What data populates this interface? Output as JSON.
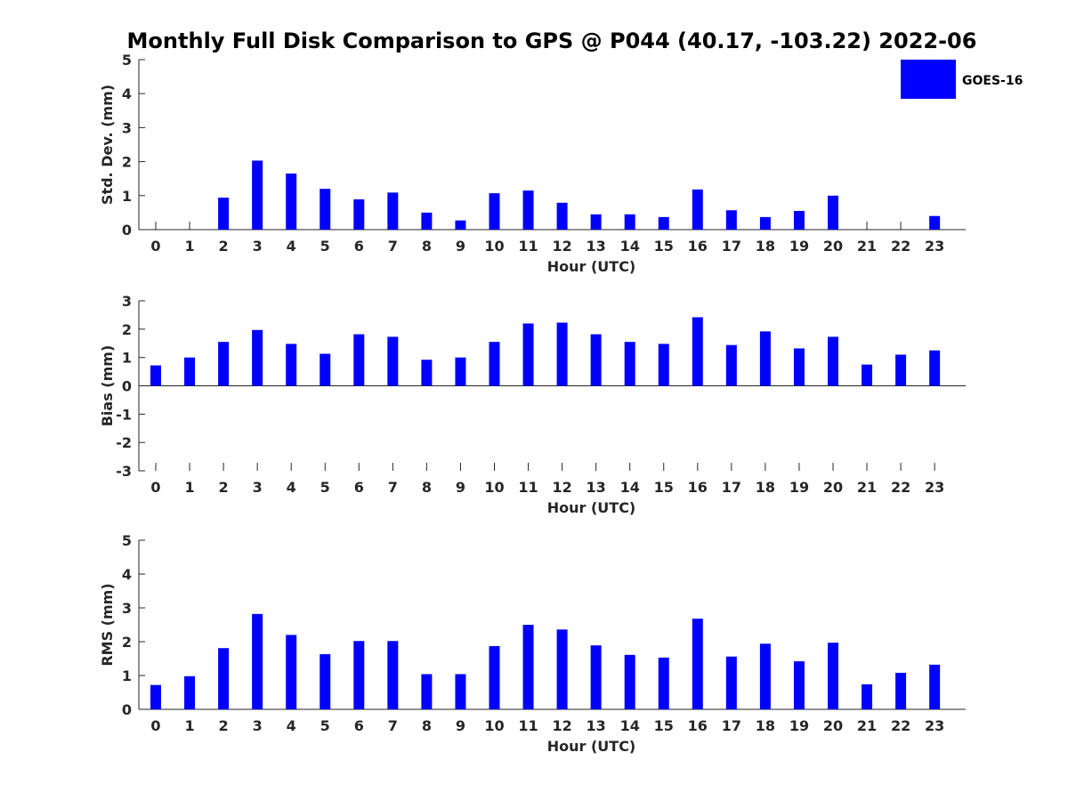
{
  "chart_data": {
    "type": "bar",
    "title": "Monthly Full Disk Comparison to GPS @ P044 (40.17, -103.22) 2022-06",
    "legend": {
      "entries": [
        "GOES-16"
      ],
      "placement": "top-right"
    },
    "colors": {
      "bar": "#0000ff",
      "axis": "#262626"
    },
    "categories": [
      "0",
      "1",
      "2",
      "3",
      "4",
      "5",
      "6",
      "7",
      "8",
      "9",
      "10",
      "11",
      "12",
      "13",
      "14",
      "15",
      "16",
      "17",
      "18",
      "19",
      "20",
      "21",
      "22",
      "23"
    ],
    "panels": [
      {
        "ylabel": "Std. Dev. (mm)",
        "xlabel": "Hour (UTC)",
        "ylim": [
          0,
          5
        ],
        "yticks": [
          "0",
          "1",
          "2",
          "3",
          "4",
          "5"
        ],
        "series": [
          {
            "name": "GOES-16",
            "values": [
              null,
              null,
              0.94,
              2.03,
              1.65,
              1.2,
              0.89,
              1.09,
              0.5,
              0.27,
              1.07,
              1.15,
              0.79,
              0.45,
              0.45,
              0.37,
              1.18,
              0.57,
              0.37,
              0.55,
              1.0,
              null,
              null,
              0.4
            ]
          }
        ]
      },
      {
        "ylabel": "Bias (mm)",
        "xlabel": "Hour (UTC)",
        "ylim": [
          -3,
          3
        ],
        "yticks": [
          "-3",
          "-2",
          "-1",
          "0",
          "1",
          "2",
          "3"
        ],
        "series": [
          {
            "name": "GOES-16",
            "values": [
              0.72,
              1.0,
              1.55,
              1.97,
              1.48,
              1.13,
              1.82,
              1.73,
              0.92,
              1.0,
              1.55,
              2.2,
              2.23,
              1.82,
              1.55,
              1.48,
              2.42,
              1.44,
              1.92,
              1.32,
              1.73,
              0.75,
              1.1,
              1.25
            ]
          }
        ]
      },
      {
        "ylabel": "RMS (mm)",
        "xlabel": "Hour (UTC)",
        "ylim": [
          0,
          5
        ],
        "yticks": [
          "0",
          "1",
          "2",
          "3",
          "4",
          "5"
        ],
        "series": [
          {
            "name": "GOES-16",
            "values": [
              0.72,
              0.98,
              1.81,
              2.82,
              2.2,
              1.63,
              2.02,
              2.02,
              1.04,
              1.04,
              1.87,
              2.5,
              2.36,
              1.89,
              1.61,
              1.53,
              2.68,
              1.56,
              1.94,
              1.42,
              1.97,
              0.74,
              1.08,
              1.32
            ]
          }
        ]
      }
    ]
  }
}
